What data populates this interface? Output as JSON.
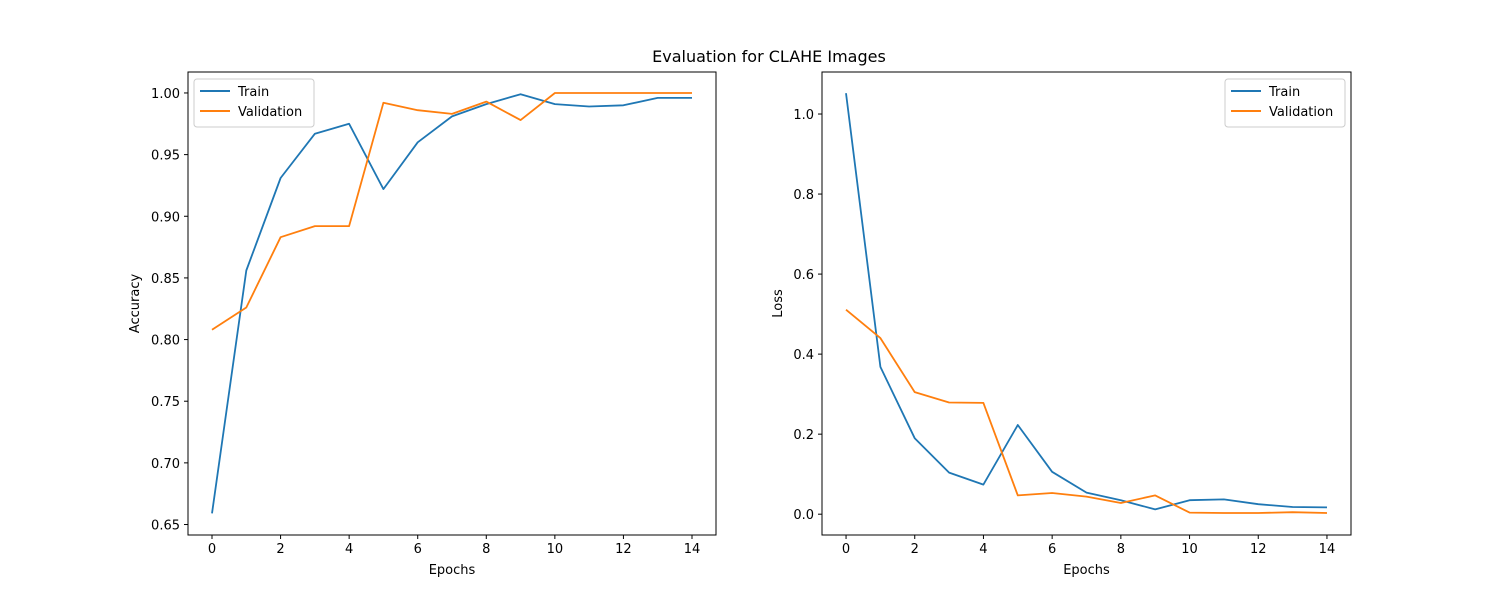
{
  "figure": {
    "title": "Evaluation for CLAHE Images"
  },
  "chart_data": [
    {
      "type": "line",
      "title": "",
      "xlabel": "Epochs",
      "ylabel": "Accuracy",
      "xlim": [
        -0.7,
        14.7
      ],
      "ylim": [
        0.6415,
        1.017
      ],
      "xticks": [
        0,
        2,
        4,
        6,
        8,
        10,
        12,
        14
      ],
      "yticks": [
        0.65,
        0.7,
        0.75,
        0.8,
        0.85,
        0.9,
        0.95,
        1.0
      ],
      "ytick_labels": [
        "0.65",
        "0.70",
        "0.75",
        "0.80",
        "0.85",
        "0.90",
        "0.95",
        "1.00"
      ],
      "grid": false,
      "legend_position": "upper-left",
      "x": [
        0,
        1,
        2,
        3,
        4,
        5,
        6,
        7,
        8,
        9,
        10,
        11,
        12,
        13,
        14
      ],
      "series": [
        {
          "name": "Train",
          "color": "#1f77b4",
          "values": [
            0.659,
            0.856,
            0.931,
            0.967,
            0.975,
            0.922,
            0.96,
            0.981,
            0.991,
            0.999,
            0.991,
            0.989,
            0.99,
            0.996,
            0.996
          ]
        },
        {
          "name": "Validation",
          "color": "#ff7f0e",
          "values": [
            0.808,
            0.826,
            0.883,
            0.892,
            0.892,
            0.992,
            0.986,
            0.983,
            0.993,
            0.978,
            1.0,
            1.0,
            1.0,
            1.0,
            1.0
          ]
        }
      ]
    },
    {
      "type": "line",
      "title": "",
      "xlabel": "Epochs",
      "ylabel": "Loss",
      "xlim": [
        -0.7,
        14.7
      ],
      "ylim": [
        -0.052,
        1.105
      ],
      "xticks": [
        0,
        2,
        4,
        6,
        8,
        10,
        12,
        14
      ],
      "yticks": [
        0.0,
        0.2,
        0.4,
        0.6,
        0.8,
        1.0
      ],
      "ytick_labels": [
        "0.0",
        "0.2",
        "0.4",
        "0.6",
        "0.8",
        "1.0"
      ],
      "grid": false,
      "legend_position": "upper-right",
      "x": [
        0,
        1,
        2,
        3,
        4,
        5,
        6,
        7,
        8,
        9,
        10,
        11,
        12,
        13,
        14
      ],
      "series": [
        {
          "name": "Train",
          "color": "#1f77b4",
          "values": [
            1.052,
            0.368,
            0.19,
            0.104,
            0.074,
            0.223,
            0.106,
            0.054,
            0.035,
            0.012,
            0.035,
            0.037,
            0.025,
            0.018,
            0.017
          ]
        },
        {
          "name": "Validation",
          "color": "#ff7f0e",
          "values": [
            0.511,
            0.44,
            0.305,
            0.279,
            0.278,
            0.047,
            0.053,
            0.044,
            0.028,
            0.047,
            0.004,
            0.003,
            0.003,
            0.005,
            0.003
          ]
        }
      ]
    }
  ]
}
